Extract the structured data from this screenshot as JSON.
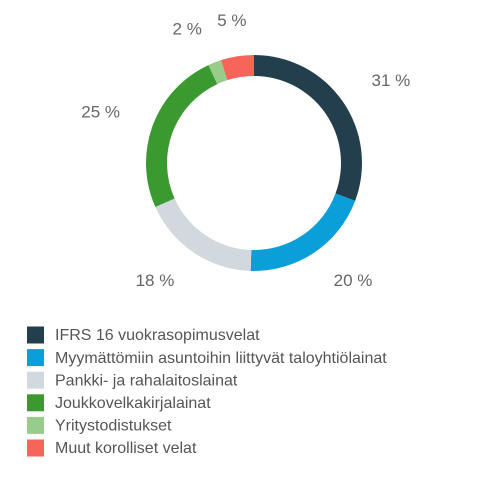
{
  "chart_data": {
    "type": "donut",
    "categories": [
      "IFRS 16 vuokrasopimusvelat",
      "Myymättömiin asuntoihin liittyvät taloyhtiölainat",
      "Pankki- ja rahalaitoslainat",
      "Joukkovelkakirjalainat",
      "Yritystodistukset",
      "Muut korolliset velat"
    ],
    "values": [
      31,
      20,
      18,
      25,
      2,
      5
    ],
    "value_labels": [
      "31 %",
      "20 %",
      "18 %",
      "25 %",
      "2 %",
      "5 %"
    ],
    "colors": [
      "#233f4d",
      "#0a9fd9",
      "#d1d9df",
      "#3a9a2f",
      "#97cc8b",
      "#f7645a"
    ]
  }
}
